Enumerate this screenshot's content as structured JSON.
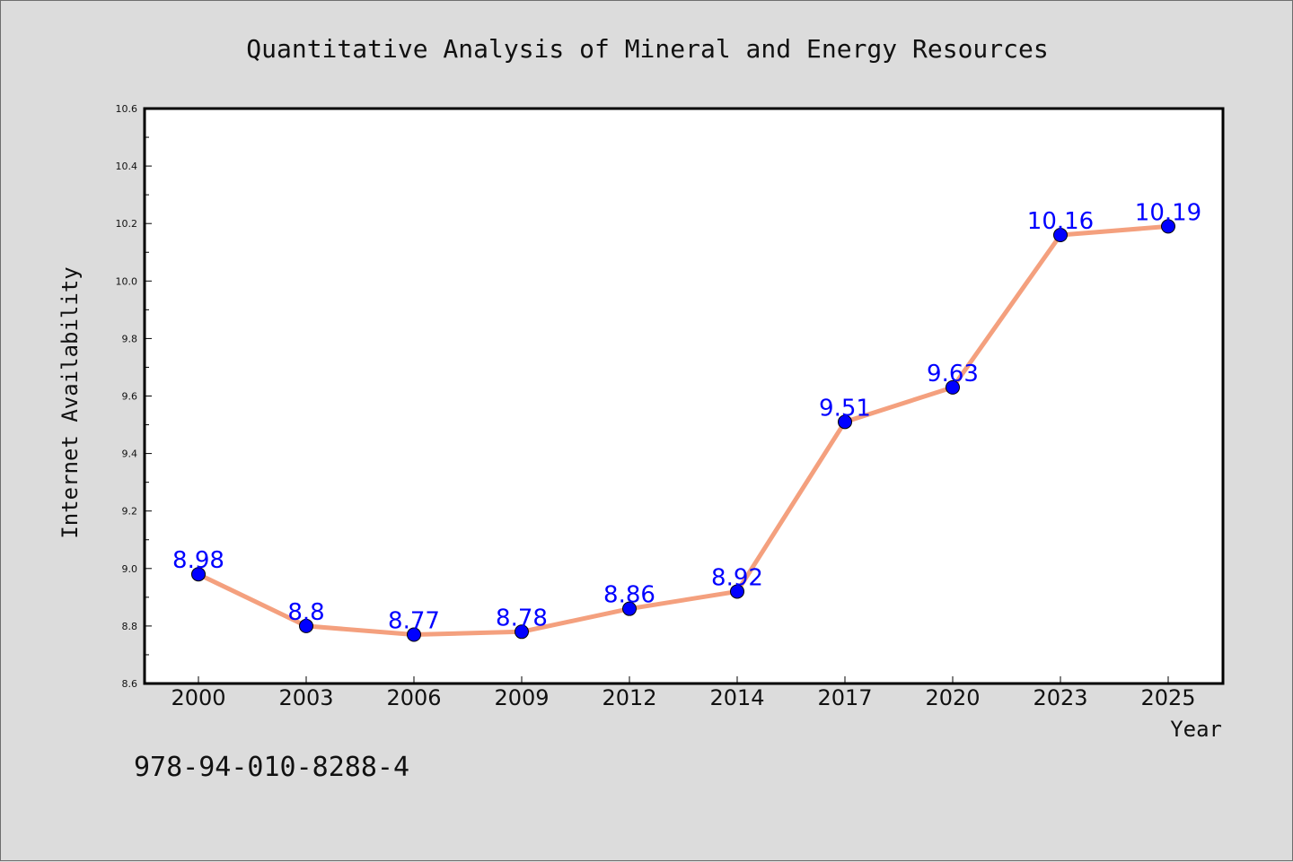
{
  "chart_data": {
    "type": "line",
    "title": "Quantitative Analysis of Mineral and Energy Resources",
    "xlabel": "Year",
    "ylabel": "Internet Availability",
    "categories": [
      "2000",
      "2003",
      "2006",
      "2009",
      "2012",
      "2014",
      "2017",
      "2020",
      "2023",
      "2025"
    ],
    "series": [
      {
        "values": [
          8.98,
          8.8,
          8.77,
          8.78,
          8.86,
          8.92,
          9.51,
          9.63,
          10.16,
          10.19
        ],
        "data_labels": [
          "8.98",
          "8.8",
          "8.77",
          "8.78",
          "8.86",
          "8.92",
          "9.51",
          "9.63",
          "10.16",
          "10.19"
        ],
        "line_color": "#f4a07e",
        "marker_color": "#0000ff"
      }
    ],
    "ylim": [
      8.6,
      10.6
    ],
    "yticks": [
      "8.6",
      "8.8",
      "9.0",
      "9.2",
      "9.4",
      "9.6",
      "9.8",
      "10.0",
      "10.2",
      "10.4",
      "10.6"
    ],
    "grid": false,
    "legend": "none"
  },
  "annotation": {
    "isbn": "978-94-010-8288-4"
  },
  "colors": {
    "background": "#dcdcdc",
    "plot_area": "#ffffff",
    "label_color": "#0000ff"
  }
}
